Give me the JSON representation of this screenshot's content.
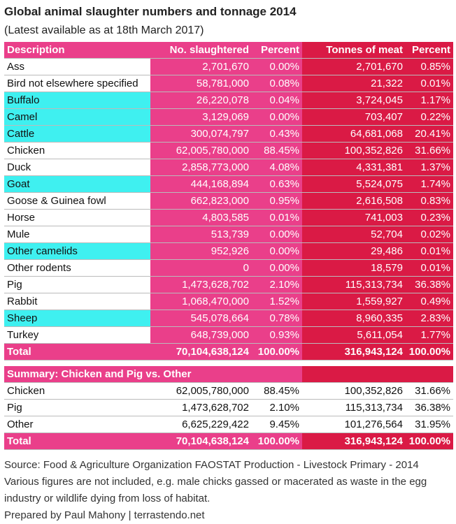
{
  "title": "Global animal slaughter numbers and tonnage 2014",
  "subtitle": "(Latest available as at 18th March 2017)",
  "colors": {
    "pink": "#EA3F8A",
    "red": "#DA1A45",
    "cyan": "#3FF0F0"
  },
  "main": {
    "headers": [
      "Description",
      "No. slaughtered",
      "Percent",
      "Tonnes of meat",
      "Percent"
    ],
    "rows": [
      {
        "cells": [
          "Ass",
          "2,701,670",
          "0.00%",
          "2,701,670",
          "0.85%"
        ],
        "highlight": false
      },
      {
        "cells": [
          "Bird not elsewhere specified",
          "58,781,000",
          "0.08%",
          "21,322",
          "0.01%"
        ],
        "highlight": false
      },
      {
        "cells": [
          "Buffalo",
          "26,220,078",
          "0.04%",
          "3,724,045",
          "1.17%"
        ],
        "highlight": true
      },
      {
        "cells": [
          "Camel",
          "3,129,069",
          "0.00%",
          "703,407",
          "0.22%"
        ],
        "highlight": true
      },
      {
        "cells": [
          "Cattle",
          "300,074,797",
          "0.43%",
          "64,681,068",
          "20.41%"
        ],
        "highlight": true
      },
      {
        "cells": [
          "Chicken",
          "62,005,780,000",
          "88.45%",
          "100,352,826",
          "31.66%"
        ],
        "highlight": false
      },
      {
        "cells": [
          "Duck",
          "2,858,773,000",
          "4.08%",
          "4,331,381",
          "1.37%"
        ],
        "highlight": false
      },
      {
        "cells": [
          "Goat",
          "444,168,894",
          "0.63%",
          "5,524,075",
          "1.74%"
        ],
        "highlight": true
      },
      {
        "cells": [
          "Goose & Guinea fowl",
          "662,823,000",
          "0.95%",
          "2,616,508",
          "0.83%"
        ],
        "highlight": false
      },
      {
        "cells": [
          "Horse",
          "4,803,585",
          "0.01%",
          "741,003",
          "0.23%"
        ],
        "highlight": false
      },
      {
        "cells": [
          "Mule",
          "513,739",
          "0.00%",
          "52,704",
          "0.02%"
        ],
        "highlight": false
      },
      {
        "cells": [
          "Other camelids",
          "952,926",
          "0.00%",
          "29,486",
          "0.01%"
        ],
        "highlight": true
      },
      {
        "cells": [
          "Other rodents",
          "0",
          "0.00%",
          "18,579",
          "0.01%"
        ],
        "highlight": false
      },
      {
        "cells": [
          "Pig",
          "1,473,628,702",
          "2.10%",
          "115,313,734",
          "36.38%"
        ],
        "highlight": false
      },
      {
        "cells": [
          "Rabbit",
          "1,068,470,000",
          "1.52%",
          "1,559,927",
          "0.49%"
        ],
        "highlight": false
      },
      {
        "cells": [
          "Sheep",
          "545,078,664",
          "0.78%",
          "8,960,335",
          "2.83%"
        ],
        "highlight": true
      },
      {
        "cells": [
          "Turkey",
          "648,739,000",
          "0.93%",
          "5,611,054",
          "1.77%"
        ],
        "highlight": false
      }
    ],
    "total": [
      "Total",
      "70,104,638,124",
      "100.00%",
      "316,943,124",
      "100.00%"
    ]
  },
  "summary": {
    "heading": "Summary: Chicken and Pig vs. Other",
    "rows": [
      {
        "cells": [
          "Chicken",
          "62,005,780,000",
          "88.45%",
          "100,352,826",
          "31.66%"
        ]
      },
      {
        "cells": [
          "Pig",
          "1,473,628,702",
          "2.10%",
          "115,313,734",
          "36.38%"
        ]
      },
      {
        "cells": [
          "Other",
          "6,625,229,422",
          "9.45%",
          "101,276,564",
          "31.95%"
        ]
      }
    ],
    "total": [
      "Total",
      "70,104,638,124",
      "100.00%",
      "316,943,124",
      "100.00%"
    ]
  },
  "footer": [
    "Source: Food & Agriculture Organization FAOSTAT Production - Livestock Primary - 2014",
    "Various figures are not included, e.g. male chicks gassed or macerated as waste in the egg",
    "industry or wildlife dying from loss of habitat.",
    "Prepared by Paul Mahony | terrastendo.net"
  ]
}
